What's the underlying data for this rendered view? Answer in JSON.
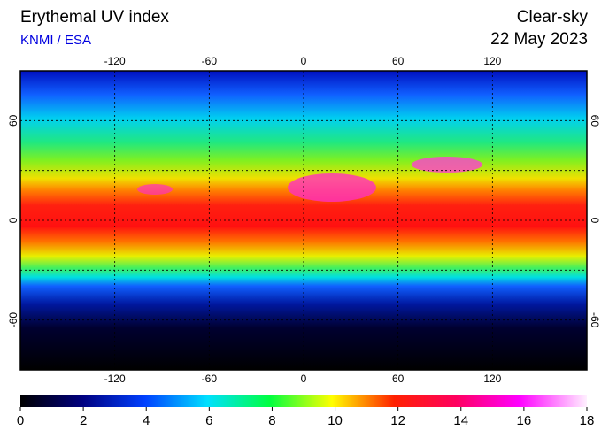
{
  "header": {
    "title": "Erythemal UV index",
    "source": "KNMI / ESA",
    "condition": "Clear-sky",
    "date": "22 May 2023"
  },
  "map": {
    "lonlim": [
      -180,
      180
    ],
    "latlim": [
      -90,
      90
    ],
    "lon_ticks": [
      -120,
      -60,
      0,
      60,
      120
    ],
    "lat_ticks": [
      60,
      0,
      -60
    ]
  },
  "colorbar": {
    "lim": [
      0,
      18
    ],
    "ticks": [
      0,
      2,
      4,
      6,
      8,
      10,
      12,
      14,
      16,
      18
    ]
  }
}
